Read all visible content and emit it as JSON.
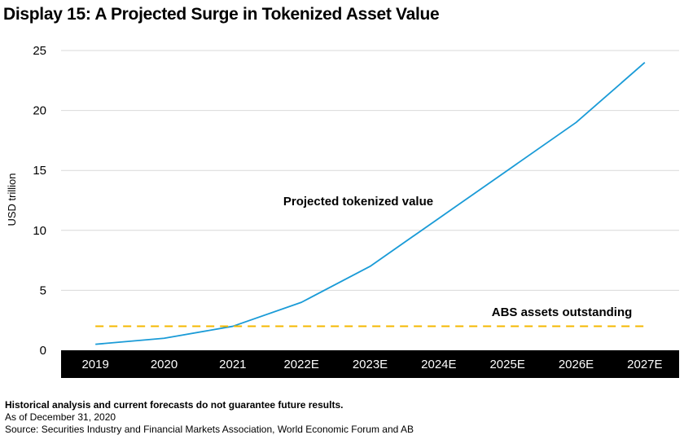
{
  "title": "Display 15: A Projected Surge in Tokenized Asset Value",
  "footer": {
    "disclaimer": "Historical analysis and current forecasts do not guarantee future results.",
    "as_of": "As of December 31, 2020",
    "source": "Source: Securities Industry and Financial Markets Association, World Economic Forum and AB"
  },
  "chart_data": {
    "type": "line",
    "title": "Display 15: A Projected Surge in Tokenized Asset Value",
    "xlabel": "",
    "ylabel": "USD trillion",
    "ylim": [
      0,
      25
    ],
    "yticks": [
      0,
      5,
      10,
      15,
      20,
      25
    ],
    "categories": [
      "2019",
      "2020",
      "2021",
      "2022E",
      "2023E",
      "2024E",
      "2025E",
      "2026E",
      "2027E"
    ],
    "grid": true,
    "series": [
      {
        "name": "Projected tokenized value",
        "color": "#1a9bd7",
        "style": "solid",
        "values": [
          0.5,
          1,
          2,
          4,
          7,
          11,
          15,
          19,
          24
        ]
      },
      {
        "name": "ABS assets outstanding",
        "color": "#f5b800",
        "style": "dashed",
        "values": [
          2,
          2,
          2,
          2,
          2,
          2,
          2,
          2,
          2
        ]
      }
    ],
    "colors": {
      "axis_band": "#000000",
      "axis_text": "#ffffff",
      "grid": "#d9d9d9"
    }
  }
}
